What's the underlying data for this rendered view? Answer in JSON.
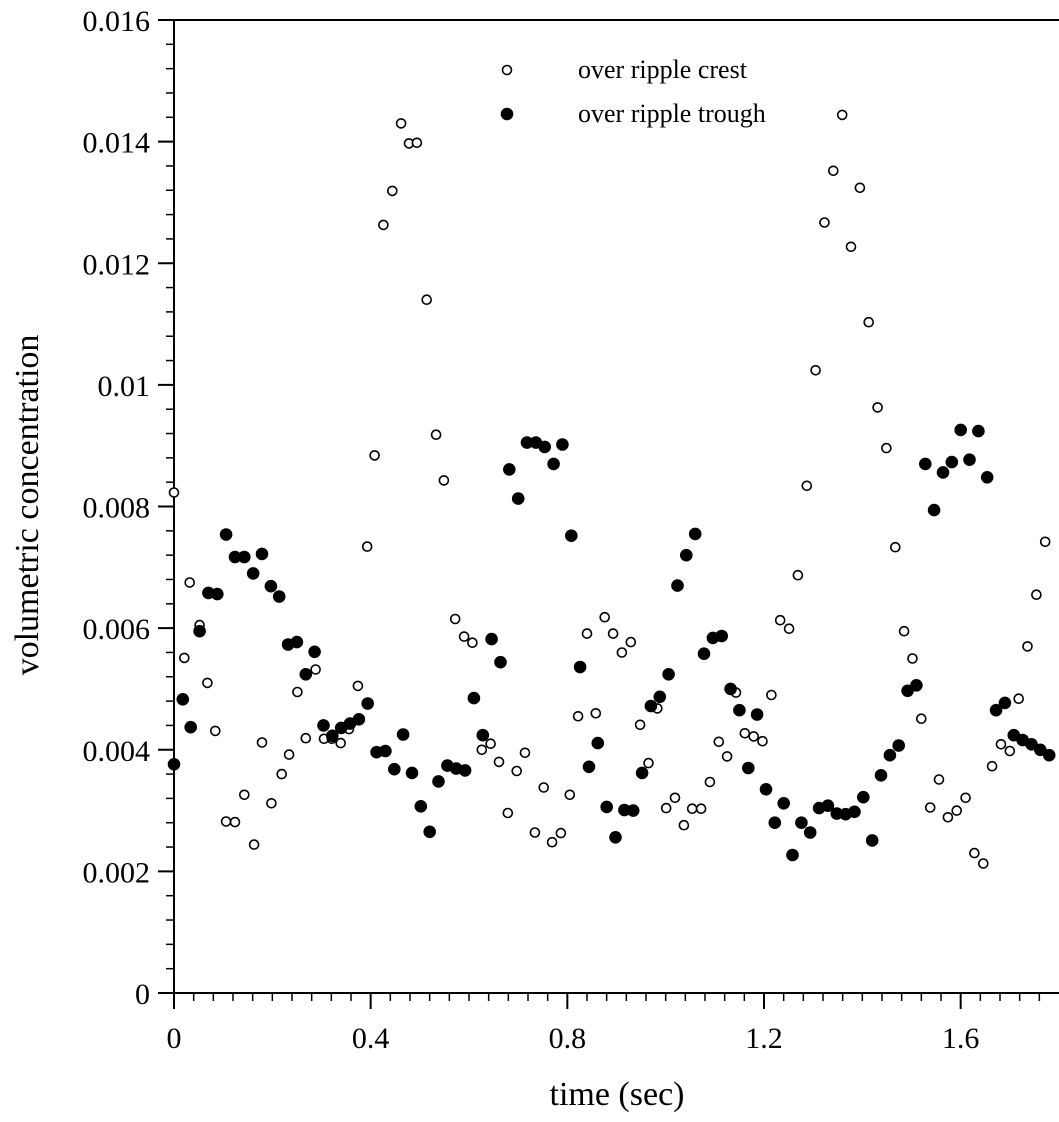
{
  "chart_data": {
    "type": "scatter",
    "title": "",
    "xlabel": "time (sec)",
    "ylabel": "volumetric concentration",
    "xlim": [
      0,
      1.8
    ],
    "ylim": [
      0,
      0.016
    ],
    "x_ticks": [
      0,
      0.4,
      0.8,
      1.2,
      1.6
    ],
    "x_tick_labels": [
      "0",
      "0.4",
      "0.8",
      "1.2",
      "1.6"
    ],
    "y_ticks": [
      0,
      0.002,
      0.004,
      0.006,
      0.008,
      0.01,
      0.012,
      0.014,
      0.016
    ],
    "y_tick_labels": [
      "0",
      "0.002",
      "0.004",
      "0.006",
      "0.008",
      "0.01",
      "0.012",
      "0.014",
      "0.016"
    ],
    "x_minor_step": 0.04,
    "y_minor_step": 0.0004,
    "grid": false,
    "legend_position": "top-center",
    "series": [
      {
        "name": "over ripple crest",
        "marker": "open-circle",
        "color": "#000000",
        "points": [
          [
            0.0,
            0.00823
          ],
          [
            0.021,
            0.00551
          ],
          [
            0.032,
            0.00675
          ],
          [
            0.052,
            0.00605
          ],
          [
            0.068,
            0.0051
          ],
          [
            0.084,
            0.00431
          ],
          [
            0.106,
            0.00282
          ],
          [
            0.124,
            0.00281
          ],
          [
            0.143,
            0.00326
          ],
          [
            0.163,
            0.00244
          ],
          [
            0.179,
            0.00412
          ],
          [
            0.198,
            0.00312
          ],
          [
            0.219,
            0.0036
          ],
          [
            0.234,
            0.00392
          ],
          [
            0.251,
            0.00495
          ],
          [
            0.268,
            0.00419
          ],
          [
            0.288,
            0.00532
          ],
          [
            0.305,
            0.00418
          ],
          [
            0.321,
            0.00418
          ],
          [
            0.339,
            0.00411
          ],
          [
            0.356,
            0.00434
          ],
          [
            0.374,
            0.00505
          ],
          [
            0.393,
            0.00734
          ],
          [
            0.408,
            0.00884
          ],
          [
            0.426,
            0.01263
          ],
          [
            0.444,
            0.01319
          ],
          [
            0.462,
            0.0143
          ],
          [
            0.478,
            0.01397
          ],
          [
            0.494,
            0.01398
          ],
          [
            0.514,
            0.0114
          ],
          [
            0.533,
            0.00918
          ],
          [
            0.549,
            0.00843
          ],
          [
            0.572,
            0.00615
          ],
          [
            0.59,
            0.00586
          ],
          [
            0.607,
            0.00576
          ],
          [
            0.626,
            0.004
          ],
          [
            0.644,
            0.0041
          ],
          [
            0.661,
            0.0038
          ],
          [
            0.679,
            0.00296
          ],
          [
            0.697,
            0.00365
          ],
          [
            0.714,
            0.00395
          ],
          [
            0.734,
            0.00264
          ],
          [
            0.752,
            0.00338
          ],
          [
            0.769,
            0.00248
          ],
          [
            0.787,
            0.00263
          ],
          [
            0.805,
            0.00326
          ],
          [
            0.822,
            0.00455
          ],
          [
            0.84,
            0.00591
          ],
          [
            0.858,
            0.0046
          ],
          [
            0.876,
            0.00618
          ],
          [
            0.893,
            0.00591
          ],
          [
            0.911,
            0.0056
          ],
          [
            0.929,
            0.00577
          ],
          [
            0.948,
            0.00441
          ],
          [
            0.965,
            0.00378
          ],
          [
            0.983,
            0.00468
          ],
          [
            1.001,
            0.00304
          ],
          [
            1.019,
            0.00321
          ],
          [
            1.037,
            0.00276
          ],
          [
            1.054,
            0.00303
          ],
          [
            1.072,
            0.00303
          ],
          [
            1.09,
            0.00347
          ],
          [
            1.108,
            0.00413
          ],
          [
            1.125,
            0.00389
          ],
          [
            1.143,
            0.00494
          ],
          [
            1.161,
            0.00427
          ],
          [
            1.179,
            0.00422
          ],
          [
            1.197,
            0.00414
          ],
          [
            1.215,
            0.0049
          ],
          [
            1.233,
            0.00613
          ],
          [
            1.251,
            0.00599
          ],
          [
            1.269,
            0.00687
          ],
          [
            1.287,
            0.00834
          ],
          [
            1.305,
            0.01024
          ],
          [
            1.323,
            0.01267
          ],
          [
            1.341,
            0.01352
          ],
          [
            1.359,
            0.01444
          ],
          [
            1.377,
            0.01227
          ],
          [
            1.395,
            0.01324
          ],
          [
            1.413,
            0.01103
          ],
          [
            1.431,
            0.00963
          ],
          [
            1.449,
            0.00896
          ],
          [
            1.467,
            0.00733
          ],
          [
            1.485,
            0.00595
          ],
          [
            1.502,
            0.0055
          ],
          [
            1.52,
            0.00451
          ],
          [
            1.538,
            0.00305
          ],
          [
            1.556,
            0.00351
          ],
          [
            1.574,
            0.00289
          ],
          [
            1.592,
            0.003
          ],
          [
            1.61,
            0.00321
          ],
          [
            1.628,
            0.0023
          ],
          [
            1.646,
            0.00213
          ],
          [
            1.664,
            0.00373
          ],
          [
            1.682,
            0.00409
          ],
          [
            1.7,
            0.00398
          ],
          [
            1.718,
            0.00484
          ],
          [
            1.736,
            0.0057
          ],
          [
            1.754,
            0.00655
          ],
          [
            1.772,
            0.00742
          ]
        ]
      },
      {
        "name": "over ripple trough",
        "marker": "filled-circle",
        "color": "#000000",
        "points": [
          [
            0.0,
            0.00376
          ],
          [
            0.018,
            0.00483
          ],
          [
            0.034,
            0.00437
          ],
          [
            0.052,
            0.00595
          ],
          [
            0.07,
            0.00658
          ],
          [
            0.088,
            0.00656
          ],
          [
            0.106,
            0.00754
          ],
          [
            0.124,
            0.00717
          ],
          [
            0.143,
            0.00717
          ],
          [
            0.161,
            0.0069
          ],
          [
            0.179,
            0.00722
          ],
          [
            0.197,
            0.00669
          ],
          [
            0.214,
            0.00652
          ],
          [
            0.232,
            0.00573
          ],
          [
            0.25,
            0.00577
          ],
          [
            0.268,
            0.00524
          ],
          [
            0.286,
            0.00561
          ],
          [
            0.304,
            0.0044
          ],
          [
            0.322,
            0.00423
          ],
          [
            0.34,
            0.00436
          ],
          [
            0.358,
            0.00443
          ],
          [
            0.376,
            0.0045
          ],
          [
            0.394,
            0.00476
          ],
          [
            0.412,
            0.00396
          ],
          [
            0.43,
            0.00398
          ],
          [
            0.448,
            0.00368
          ],
          [
            0.466,
            0.00425
          ],
          [
            0.484,
            0.00362
          ],
          [
            0.502,
            0.00307
          ],
          [
            0.52,
            0.00265
          ],
          [
            0.538,
            0.00348
          ],
          [
            0.556,
            0.00374
          ],
          [
            0.574,
            0.00369
          ],
          [
            0.592,
            0.00366
          ],
          [
            0.61,
            0.00485
          ],
          [
            0.628,
            0.00424
          ],
          [
            0.646,
            0.00582
          ],
          [
            0.664,
            0.00544
          ],
          [
            0.682,
            0.00861
          ],
          [
            0.7,
            0.00813
          ],
          [
            0.718,
            0.00905
          ],
          [
            0.736,
            0.00905
          ],
          [
            0.754,
            0.00898
          ],
          [
            0.772,
            0.0087
          ],
          [
            0.79,
            0.00902
          ],
          [
            0.808,
            0.00752
          ],
          [
            0.826,
            0.00536
          ],
          [
            0.844,
            0.00372
          ],
          [
            0.862,
            0.00411
          ],
          [
            0.88,
            0.00306
          ],
          [
            0.898,
            0.00256
          ],
          [
            0.916,
            0.00301
          ],
          [
            0.934,
            0.003
          ],
          [
            0.952,
            0.00362
          ],
          [
            0.97,
            0.00472
          ],
          [
            0.988,
            0.00487
          ],
          [
            1.006,
            0.00524
          ],
          [
            1.024,
            0.0067
          ],
          [
            1.042,
            0.0072
          ],
          [
            1.06,
            0.00755
          ],
          [
            1.078,
            0.00558
          ],
          [
            1.096,
            0.00584
          ],
          [
            1.114,
            0.00587
          ],
          [
            1.132,
            0.005
          ],
          [
            1.15,
            0.00465
          ],
          [
            1.168,
            0.0037
          ],
          [
            1.186,
            0.00458
          ],
          [
            1.204,
            0.00335
          ],
          [
            1.222,
            0.0028
          ],
          [
            1.24,
            0.00312
          ],
          [
            1.258,
            0.00227
          ],
          [
            1.276,
            0.0028
          ],
          [
            1.294,
            0.00264
          ],
          [
            1.312,
            0.00304
          ],
          [
            1.33,
            0.00308
          ],
          [
            1.348,
            0.00295
          ],
          [
            1.366,
            0.00294
          ],
          [
            1.384,
            0.00298
          ],
          [
            1.402,
            0.00322
          ],
          [
            1.42,
            0.00251
          ],
          [
            1.438,
            0.00358
          ],
          [
            1.456,
            0.00391
          ],
          [
            1.474,
            0.00407
          ],
          [
            1.492,
            0.00497
          ],
          [
            1.51,
            0.00506
          ],
          [
            1.528,
            0.0087
          ],
          [
            1.546,
            0.00794
          ],
          [
            1.564,
            0.00856
          ],
          [
            1.582,
            0.00873
          ],
          [
            1.6,
            0.00926
          ],
          [
            1.618,
            0.00877
          ],
          [
            1.636,
            0.00924
          ],
          [
            1.654,
            0.00848
          ],
          [
            1.672,
            0.00465
          ],
          [
            1.69,
            0.00477
          ],
          [
            1.708,
            0.00424
          ],
          [
            1.726,
            0.00416
          ],
          [
            1.744,
            0.00409
          ],
          [
            1.762,
            0.004
          ],
          [
            1.78,
            0.00391
          ]
        ]
      }
    ]
  }
}
